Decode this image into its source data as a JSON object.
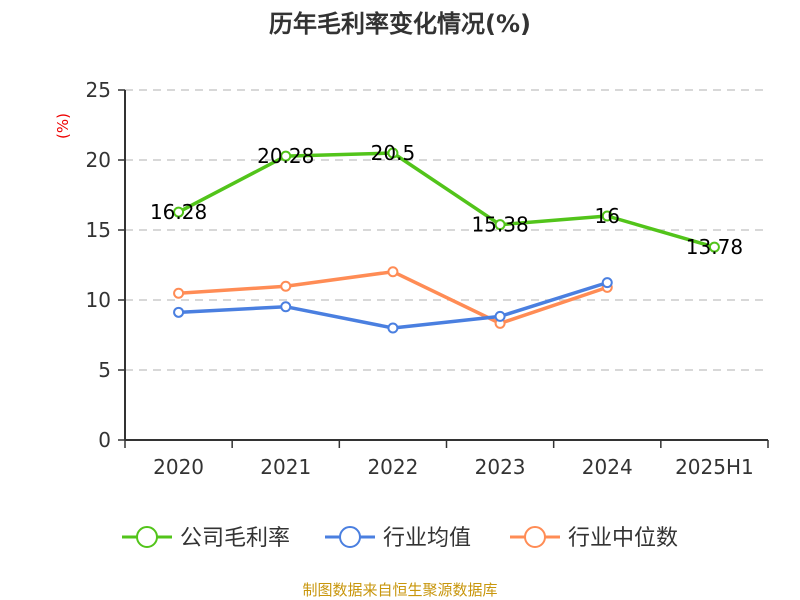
{
  "chart_data": {
    "type": "line",
    "title": "历年毛利率变化情况(%)",
    "ylabel": "(%)",
    "categories": [
      "2020",
      "2021",
      "2022",
      "2023",
      "2024",
      "2025H1"
    ],
    "ylim": [
      0,
      25
    ],
    "yticks": [
      "0",
      "5",
      "10",
      "15",
      "20",
      "25"
    ],
    "grid": true,
    "legend_position": "bottom",
    "series": [
      {
        "name": "公司毛利率",
        "color": "#52c41a",
        "values": [
          16.28,
          20.28,
          20.5,
          15.38,
          16,
          13.78
        ],
        "labels": [
          "16.28",
          "20.28",
          "20.5",
          "15.38",
          "16",
          "13.78"
        ]
      },
      {
        "name": "行业均值",
        "color": "#4a7fe0",
        "values": [
          9.12,
          9.52,
          8.0,
          8.83,
          11.24,
          null
        ]
      },
      {
        "name": "行业中位数",
        "color": "#ff8c55",
        "values": [
          10.48,
          10.98,
          12.02,
          8.33,
          10.9,
          null
        ]
      }
    ],
    "source": "制图数据来自恒生聚源数据库"
  }
}
